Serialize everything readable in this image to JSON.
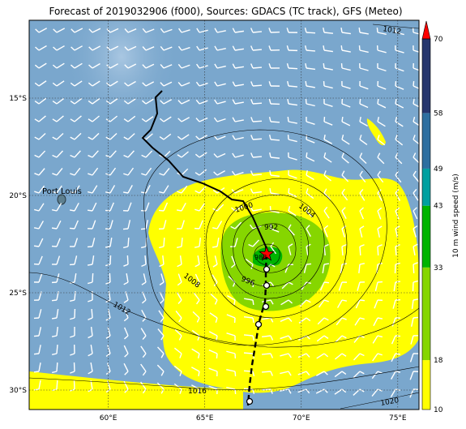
{
  "title": "Forecast of 2019032906 (f000), Sources: GDACS (TC track), GFS (Meteo)",
  "city": {
    "name": "Port Louis",
    "lon": 57.5,
    "lat": -20.16
  },
  "axes": {
    "lat_ticks": [
      {
        "label": "15°S",
        "value": -15
      },
      {
        "label": "20°S",
        "value": -20
      },
      {
        "label": "25°S",
        "value": -25
      },
      {
        "label": "30°S",
        "value": -30
      }
    ],
    "lon_ticks": [
      {
        "label": "60°E",
        "value": 60
      },
      {
        "label": "65°E",
        "value": 65
      },
      {
        "label": "70°E",
        "value": 70
      },
      {
        "label": "75°E",
        "value": 75
      }
    ],
    "lon_range": [
      55.9,
      76.1
    ],
    "lat_range": [
      -31.0,
      -11.0
    ]
  },
  "isobars": [
    {
      "label": "1012"
    },
    {
      "label": "1004"
    },
    {
      "label": "1000"
    },
    {
      "label": "992"
    },
    {
      "label": "996"
    },
    {
      "label": "1008"
    },
    {
      "label": "1012"
    },
    {
      "label": "1016"
    },
    {
      "label": "1020"
    },
    {
      "label": "988"
    }
  ],
  "colorbar": {
    "label": "10 m wind speed (m/s)",
    "ticks": [
      "10",
      "18",
      "33",
      "43",
      "49",
      "58",
      "70"
    ],
    "colors": [
      "#ffff00",
      "#86d600",
      "#00b400",
      "#00a0a0",
      "#2e6fa0",
      "#26366e",
      "#ff0000"
    ]
  },
  "storm_center": {
    "lon": 67.9,
    "lat": -23.0
  },
  "colors": {
    "ocean": "#7aa7cd",
    "land": "#5d7f8f",
    "track": "#000000",
    "marker": "#ff0000"
  }
}
